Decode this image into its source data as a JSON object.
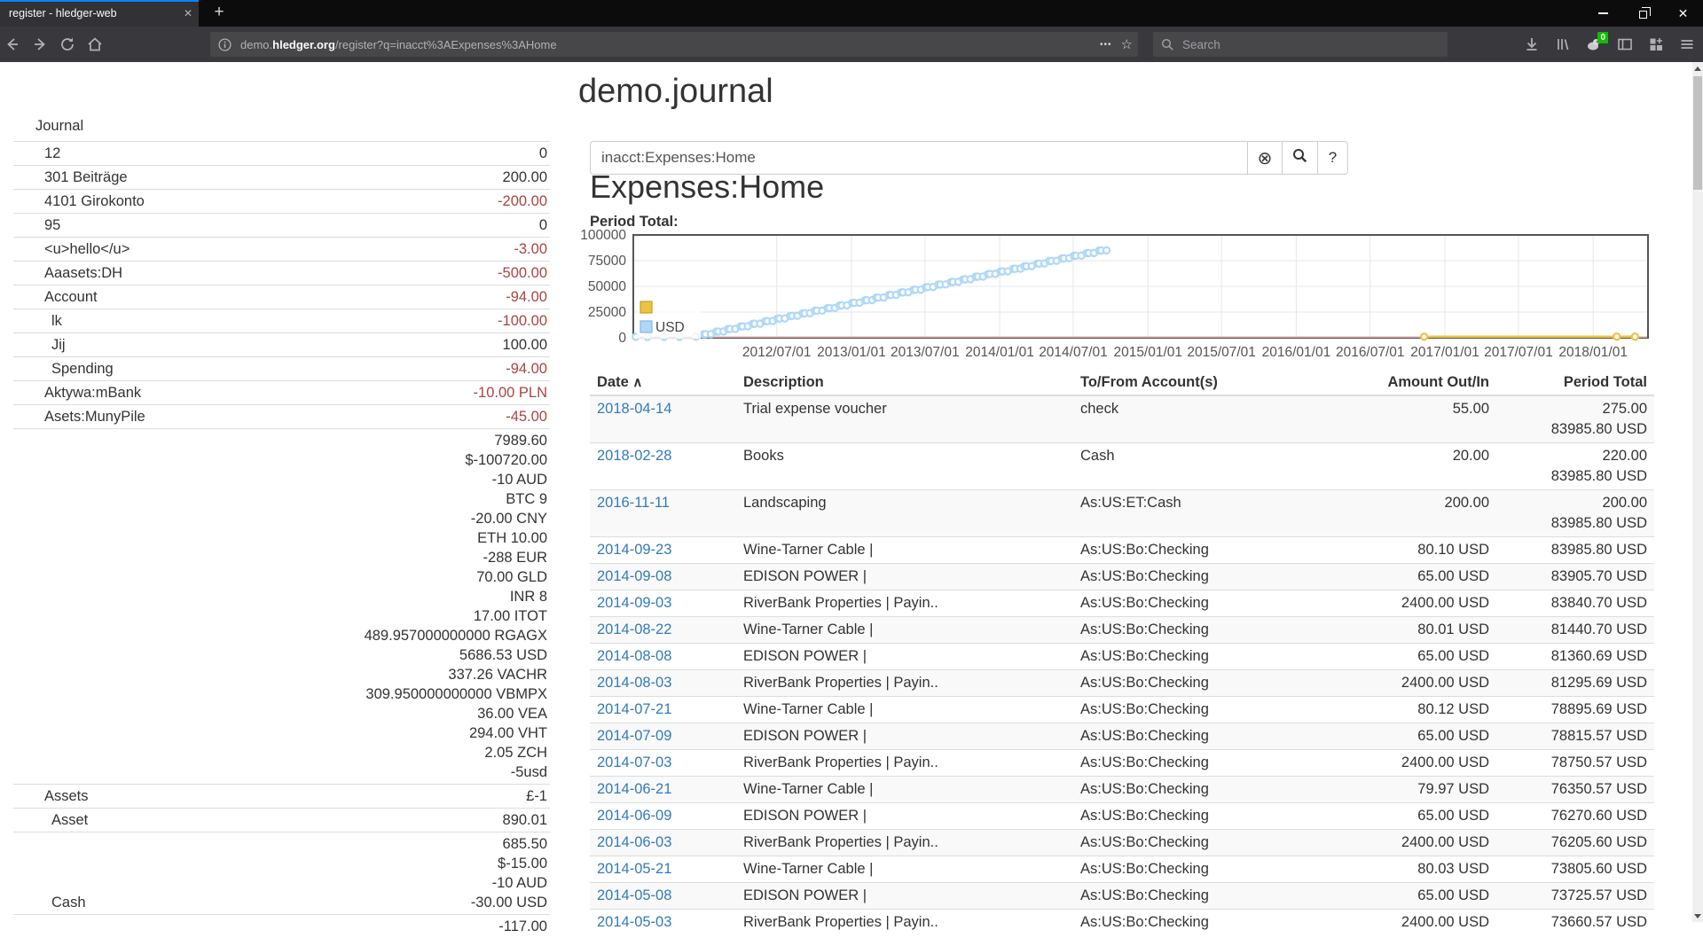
{
  "browser": {
    "tab_title": "register - hledger-web",
    "new_tab_label": "+",
    "url": {
      "prefix": "demo.",
      "domain": "hledger.org",
      "path": "/register?q=inacct%3AExpenses%3AHome"
    },
    "search_placeholder": "Search",
    "extension_badge": "0"
  },
  "page": {
    "title": "demo.journal",
    "heading": "Expenses:Home",
    "chart_label": "Period Total:",
    "search": {
      "value": "inacct:Expenses:Home",
      "clear_label": "⊗",
      "help_label": "?"
    }
  },
  "sidebar": {
    "journal_link": "Journal",
    "rows": [
      {
        "label": "12",
        "indent": 1,
        "lines": [
          {
            "text": "0",
            "negative": false
          }
        ]
      },
      {
        "label": "301 Beiträge",
        "indent": 1,
        "lines": [
          {
            "text": "200.00",
            "negative": false
          }
        ]
      },
      {
        "label": "4101 Girokonto",
        "indent": 1,
        "lines": [
          {
            "text": "-200.00",
            "negative": true
          }
        ]
      },
      {
        "label": "95",
        "indent": 1,
        "lines": [
          {
            "text": "0",
            "negative": false
          }
        ]
      },
      {
        "label": "<u>hello</u>",
        "indent": 1,
        "lines": [
          {
            "text": "-3.00",
            "negative": true
          }
        ]
      },
      {
        "label": "Aaasets:DH",
        "indent": 1,
        "lines": [
          {
            "text": "-500.00",
            "negative": true
          }
        ]
      },
      {
        "label": "Account",
        "indent": 1,
        "lines": [
          {
            "text": "-94.00",
            "negative": true
          }
        ]
      },
      {
        "label": "lk",
        "indent": 2,
        "lines": [
          {
            "text": "-100.00",
            "negative": true
          }
        ]
      },
      {
        "label": "Jij",
        "indent": 2,
        "lines": [
          {
            "text": "100.00",
            "negative": false
          }
        ]
      },
      {
        "label": "Spending",
        "indent": 2,
        "lines": [
          {
            "text": "-94.00",
            "negative": true
          }
        ]
      },
      {
        "label": "Aktywa:mBank",
        "indent": 1,
        "lines": [
          {
            "text": "-10.00 PLN",
            "negative": true
          }
        ]
      },
      {
        "label": "Asets:MunyPile",
        "indent": 1,
        "lines": [
          {
            "text": "-45.00",
            "negative": true
          }
        ]
      },
      {
        "label": "",
        "indent": 1,
        "lines": [
          {
            "text": "7989.60",
            "negative": false
          },
          {
            "text": "$-100720.00",
            "negative": false
          },
          {
            "text": "-10 AUD",
            "negative": false
          },
          {
            "text": "BTC 9",
            "negative": false
          },
          {
            "text": "-20.00 CNY",
            "negative": false
          },
          {
            "text": "ETH 10.00",
            "negative": false
          },
          {
            "text": "-288 EUR",
            "negative": false
          },
          {
            "text": "70.00 GLD",
            "negative": false
          },
          {
            "text": "INR 8",
            "negative": false
          },
          {
            "text": "17.00 ITOT",
            "negative": false
          },
          {
            "text": "489.957000000000 RGAGX",
            "negative": false
          },
          {
            "text": "5686.53 USD",
            "negative": false
          },
          {
            "text": "337.26 VACHR",
            "negative": false
          },
          {
            "text": "309.950000000000 VBMPX",
            "negative": false
          },
          {
            "text": "36.00 VEA",
            "negative": false
          },
          {
            "text": "294.00 VHT",
            "negative": false
          },
          {
            "text": "2.05 ZCH",
            "negative": false
          },
          {
            "text": "-5usd",
            "negative": false
          }
        ]
      },
      {
        "label": "Assets",
        "indent": 1,
        "lines": [
          {
            "text": "£-1",
            "negative": false
          }
        ]
      },
      {
        "label": "Asset",
        "indent": 2,
        "lines": [
          {
            "text": "890.01",
            "negative": false
          }
        ]
      },
      {
        "label": "Cash",
        "indent": 2,
        "label_valign": "bottom",
        "lines": [
          {
            "text": "685.50",
            "negative": false
          },
          {
            "text": "$-15.00",
            "negative": false
          },
          {
            "text": "-10 AUD",
            "negative": false
          },
          {
            "text": "-30.00 USD",
            "negative": false
          }
        ]
      },
      {
        "label": "",
        "indent": 1,
        "lines": [
          {
            "text": "-117.00",
            "negative": false
          }
        ]
      }
    ]
  },
  "chart_data": {
    "type": "line",
    "title": "Period Total",
    "x_axis": {
      "ticks": [
        "2012/07/01",
        "2013/01/01",
        "2013/07/01",
        "2014/01/01",
        "2014/07/01",
        "2015/01/01",
        "2015/07/01",
        "2016/01/01",
        "2016/07/01",
        "2017/01/01",
        "2017/07/01",
        "2018/01/01"
      ],
      "range": [
        "2011-07-14",
        "2018-05-16"
      ]
    },
    "y_axis": {
      "ticks": [
        0,
        25000,
        50000,
        75000,
        100000
      ],
      "range": [
        0,
        100000
      ]
    },
    "grid": true,
    "grid_color": "#e7e7e7",
    "plot_border_color": "#565656",
    "zero_line_color": "#f0bdbd",
    "tick_text_color": "#545454",
    "legend": {
      "position": "left-middle",
      "entries": [
        {
          "label": "",
          "color": "#edc240",
          "border": "#c79f28"
        },
        {
          "label": "USD",
          "color": "#afd8f8",
          "border": "#8ab6d9"
        }
      ]
    },
    "series": [
      {
        "name": "",
        "color": "#edc240",
        "style": "line+points",
        "points": [
          [
            "2016-11-11",
            200
          ],
          [
            "2018-02-28",
            220
          ],
          [
            "2018-04-14",
            275
          ]
        ]
      },
      {
        "name": "USD",
        "color": "#afd8f8",
        "style": "points",
        "points": [
          [
            "2011-07-20",
            15
          ],
          [
            "2011-08-18",
            35
          ],
          [
            "2011-09-28",
            60
          ],
          [
            "2011-11-05",
            90
          ],
          [
            "2011-12-15",
            130
          ],
          [
            "2012-01-03",
            2530
          ],
          [
            "2012-01-08",
            2595
          ],
          [
            "2012-01-21",
            2675
          ],
          [
            "2012-02-03",
            5075
          ],
          [
            "2012-02-08",
            5140
          ],
          [
            "2012-02-21",
            5220
          ],
          [
            "2012-03-03",
            7620
          ],
          [
            "2012-03-08",
            7685
          ],
          [
            "2012-03-21",
            7765
          ],
          [
            "2012-04-03",
            10165
          ],
          [
            "2012-04-08",
            10230
          ],
          [
            "2012-04-21",
            10310
          ],
          [
            "2012-05-03",
            12710
          ],
          [
            "2012-05-08",
            12775
          ],
          [
            "2012-05-21",
            12855
          ],
          [
            "2012-06-03",
            15255
          ],
          [
            "2012-06-08",
            15320
          ],
          [
            "2012-06-21",
            15400
          ],
          [
            "2012-07-03",
            17800
          ],
          [
            "2012-07-08",
            17865
          ],
          [
            "2012-07-21",
            17945
          ],
          [
            "2012-08-03",
            20345
          ],
          [
            "2012-08-08",
            20410
          ],
          [
            "2012-08-21",
            20490
          ],
          [
            "2012-09-03",
            22890
          ],
          [
            "2012-09-08",
            22955
          ],
          [
            "2012-09-21",
            23035
          ],
          [
            "2012-10-03",
            25435
          ],
          [
            "2012-10-08",
            25500
          ],
          [
            "2012-10-21",
            25580
          ],
          [
            "2012-11-03",
            27980
          ],
          [
            "2012-11-08",
            28045
          ],
          [
            "2012-11-21",
            28125
          ],
          [
            "2012-12-03",
            30525
          ],
          [
            "2012-12-08",
            30590
          ],
          [
            "2012-12-21",
            30670
          ],
          [
            "2013-01-03",
            33070
          ],
          [
            "2013-01-08",
            33135
          ],
          [
            "2013-01-21",
            33215
          ],
          [
            "2013-02-03",
            35615
          ],
          [
            "2013-02-08",
            35680
          ],
          [
            "2013-02-21",
            35760
          ],
          [
            "2013-03-03",
            38160
          ],
          [
            "2013-03-08",
            38225
          ],
          [
            "2013-03-21",
            38305
          ],
          [
            "2013-04-03",
            40705
          ],
          [
            "2013-04-08",
            40770
          ],
          [
            "2013-04-21",
            40850
          ],
          [
            "2013-05-03",
            43250
          ],
          [
            "2013-05-08",
            43315
          ],
          [
            "2013-05-21",
            43395
          ],
          [
            "2013-06-03",
            45795
          ],
          [
            "2013-06-08",
            45860
          ],
          [
            "2013-06-21",
            45940
          ],
          [
            "2013-07-03",
            48340
          ],
          [
            "2013-07-08",
            48405
          ],
          [
            "2013-07-21",
            48485
          ],
          [
            "2013-08-03",
            50885
          ],
          [
            "2013-08-08",
            50950
          ],
          [
            "2013-08-21",
            51030
          ],
          [
            "2013-09-03",
            53430
          ],
          [
            "2013-09-08",
            53495
          ],
          [
            "2013-09-21",
            53575
          ],
          [
            "2013-10-03",
            55975
          ],
          [
            "2013-10-08",
            56040
          ],
          [
            "2013-10-21",
            56120
          ],
          [
            "2013-11-03",
            58520
          ],
          [
            "2013-11-08",
            58585
          ],
          [
            "2013-11-21",
            58665
          ],
          [
            "2013-12-03",
            61065
          ],
          [
            "2013-12-08",
            61130
          ],
          [
            "2013-12-21",
            61210
          ],
          [
            "2014-01-03",
            63610
          ],
          [
            "2014-01-08",
            63675
          ],
          [
            "2014-01-21",
            63755
          ],
          [
            "2014-02-03",
            66155
          ],
          [
            "2014-02-08",
            66220
          ],
          [
            "2014-02-21",
            66300
          ],
          [
            "2014-03-03",
            68700
          ],
          [
            "2014-03-08",
            68765
          ],
          [
            "2014-03-21",
            68845
          ],
          [
            "2014-04-03",
            71245
          ],
          [
            "2014-04-08",
            71310
          ],
          [
            "2014-04-21",
            71390
          ],
          [
            "2014-05-03",
            73790
          ],
          [
            "2014-05-08",
            73855
          ],
          [
            "2014-05-21",
            73935
          ],
          [
            "2014-06-03",
            76335
          ],
          [
            "2014-06-08",
            76400
          ],
          [
            "2014-06-21",
            76480
          ],
          [
            "2014-07-03",
            78880
          ],
          [
            "2014-07-08",
            78945
          ],
          [
            "2014-07-21",
            79025
          ],
          [
            "2014-08-03",
            81425
          ],
          [
            "2014-08-08",
            81490
          ],
          [
            "2014-08-21",
            81570
          ],
          [
            "2014-09-03",
            83970
          ],
          [
            "2014-09-08",
            84035
          ],
          [
            "2014-09-21",
            84115
          ]
        ]
      }
    ]
  },
  "register": {
    "columns": [
      "Date",
      "Description",
      "To/From Account(s)",
      "Amount Out/In",
      "Period Total"
    ],
    "sort_indicator": "∧",
    "rows": [
      {
        "date": "2018-04-14",
        "description": "Trial expense voucher",
        "account": "check",
        "amount": "55.00",
        "totals": [
          "275.00",
          "83985.80 USD"
        ]
      },
      {
        "date": "2018-02-28",
        "description": "Books",
        "account": "Cash",
        "amount": "20.00",
        "totals": [
          "220.00",
          "83985.80 USD"
        ]
      },
      {
        "date": "2016-11-11",
        "description": "Landscaping",
        "account": "As:US:ET:Cash",
        "amount": "200.00",
        "totals": [
          "200.00",
          "83985.80 USD"
        ]
      },
      {
        "date": "2014-09-23",
        "description": "Wine-Tarner Cable |",
        "account": "As:US:Bo:Checking",
        "amount": "80.10 USD",
        "totals": [
          "83985.80 USD"
        ]
      },
      {
        "date": "2014-09-08",
        "description": "EDISON POWER |",
        "account": "As:US:Bo:Checking",
        "amount": "65.00 USD",
        "totals": [
          "83905.70 USD"
        ]
      },
      {
        "date": "2014-09-03",
        "description": "RiverBank Properties | Payin..",
        "account": "As:US:Bo:Checking",
        "amount": "2400.00 USD",
        "totals": [
          "83840.70 USD"
        ]
      },
      {
        "date": "2014-08-22",
        "description": "Wine-Tarner Cable |",
        "account": "As:US:Bo:Checking",
        "amount": "80.01 USD",
        "totals": [
          "81440.70 USD"
        ]
      },
      {
        "date": "2014-08-08",
        "description": "EDISON POWER |",
        "account": "As:US:Bo:Checking",
        "amount": "65.00 USD",
        "totals": [
          "81360.69 USD"
        ]
      },
      {
        "date": "2014-08-03",
        "description": "RiverBank Properties | Payin..",
        "account": "As:US:Bo:Checking",
        "amount": "2400.00 USD",
        "totals": [
          "81295.69 USD"
        ]
      },
      {
        "date": "2014-07-21",
        "description": "Wine-Tarner Cable |",
        "account": "As:US:Bo:Checking",
        "amount": "80.12 USD",
        "totals": [
          "78895.69 USD"
        ]
      },
      {
        "date": "2014-07-09",
        "description": "EDISON POWER |",
        "account": "As:US:Bo:Checking",
        "amount": "65.00 USD",
        "totals": [
          "78815.57 USD"
        ]
      },
      {
        "date": "2014-07-03",
        "description": "RiverBank Properties | Payin..",
        "account": "As:US:Bo:Checking",
        "amount": "2400.00 USD",
        "totals": [
          "78750.57 USD"
        ]
      },
      {
        "date": "2014-06-21",
        "description": "Wine-Tarner Cable |",
        "account": "As:US:Bo:Checking",
        "amount": "79.97 USD",
        "totals": [
          "76350.57 USD"
        ]
      },
      {
        "date": "2014-06-09",
        "description": "EDISON POWER |",
        "account": "As:US:Bo:Checking",
        "amount": "65.00 USD",
        "totals": [
          "76270.60 USD"
        ]
      },
      {
        "date": "2014-06-03",
        "description": "RiverBank Properties | Payin..",
        "account": "As:US:Bo:Checking",
        "amount": "2400.00 USD",
        "totals": [
          "76205.60 USD"
        ]
      },
      {
        "date": "2014-05-21",
        "description": "Wine-Tarner Cable |",
        "account": "As:US:Bo:Checking",
        "amount": "80.03 USD",
        "totals": [
          "73805.60 USD"
        ]
      },
      {
        "date": "2014-05-08",
        "description": "EDISON POWER |",
        "account": "As:US:Bo:Checking",
        "amount": "65.00 USD",
        "totals": [
          "73725.57 USD"
        ]
      },
      {
        "date": "2014-05-03",
        "description": "RiverBank Properties | Payin..",
        "account": "As:US:Bo:Checking",
        "amount": "2400.00 USD",
        "totals": [
          "73660.57 USD"
        ]
      }
    ]
  }
}
